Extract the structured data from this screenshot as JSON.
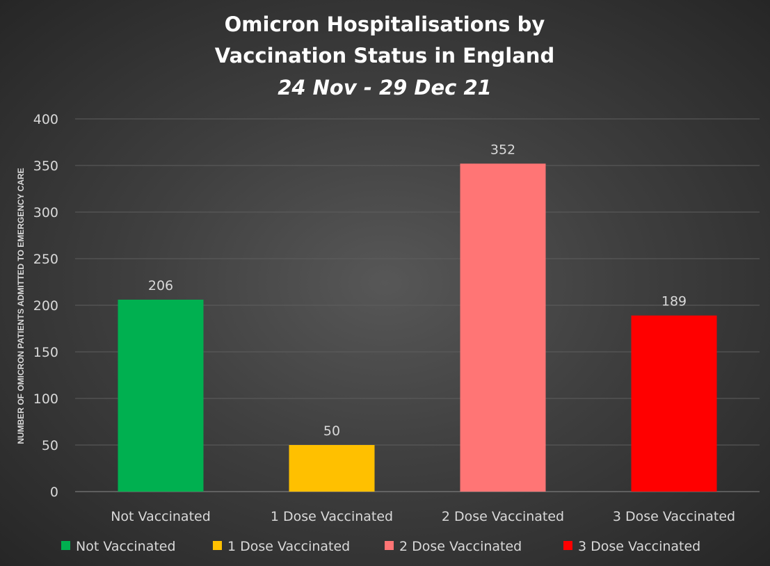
{
  "chart_data": {
    "type": "bar",
    "title_line1": "Omicron Hospitalisations by",
    "title_line2": "Vaccination Status in England",
    "subtitle": "24 Nov - 29 Dec 21",
    "xlabel": "",
    "ylabel": "NUMBER OF OMICRON PATIENTS ADMITTED TO EMERGENCY CARE",
    "ylim": [
      0,
      400
    ],
    "yticks": [
      0,
      50,
      100,
      150,
      200,
      250,
      300,
      350,
      400
    ],
    "grid": true,
    "legend_position": "bottom",
    "categories": [
      "Not Vaccinated",
      "1 Dose Vaccinated",
      "2 Dose Vaccinated",
      "3 Dose Vaccinated"
    ],
    "values": [
      206,
      50,
      352,
      189
    ],
    "colors": [
      "#00B050",
      "#FFC000",
      "#FF7575",
      "#FF0000"
    ],
    "legend": [
      "Not Vaccinated",
      "1 Dose Vaccinated",
      "2 Dose Vaccinated",
      "3 Dose Vaccinated"
    ]
  }
}
